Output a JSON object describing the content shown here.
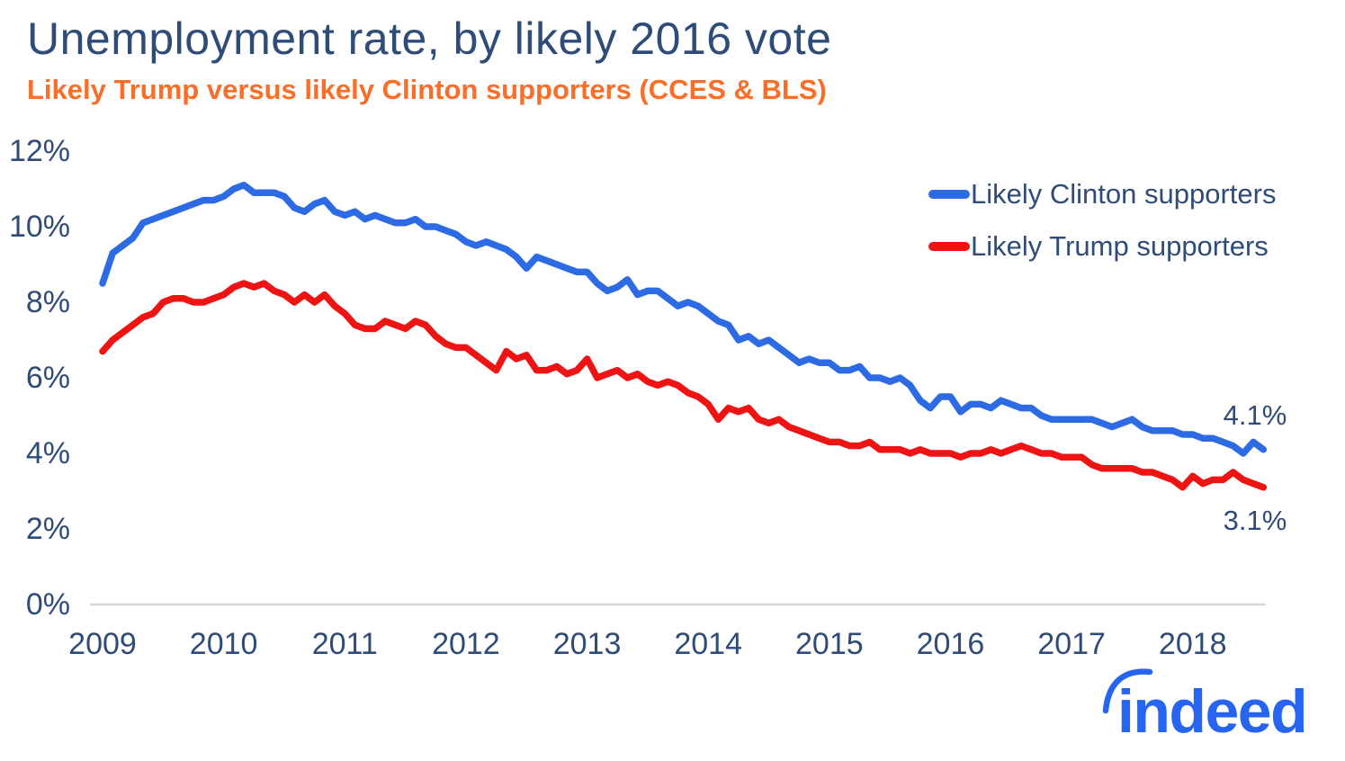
{
  "title": "Unemployment rate, by likely 2016 vote",
  "subtitle": "Likely Trump versus likely Clinton supporters (CCES & BLS)",
  "end_labels": {
    "clinton": "4.1%",
    "trump": "3.1%"
  },
  "logo_text": "indeed",
  "colors": {
    "navy_text": "#2e4c77",
    "orange_subtitle": "#f96e28",
    "clinton_blue": "#2d6be5",
    "trump_red": "#ee1414",
    "axis_gray": "#d8d8d8",
    "logo_blue": "#2664f1"
  },
  "chart_data": {
    "type": "line",
    "title": "Unemployment rate, by likely 2016 vote",
    "subtitle": "Likely Trump versus likely Clinton supporters (CCES & BLS)",
    "x_unit": "month",
    "x_start": "2009-01",
    "x_end": "2018-08",
    "x_ticks": [
      "2009",
      "2010",
      "2011",
      "2012",
      "2013",
      "2014",
      "2015",
      "2016",
      "2017",
      "2018"
    ],
    "y_ticks": [
      "0%",
      "2%",
      "4%",
      "6%",
      "8%",
      "10%",
      "12%"
    ],
    "y_tick_values": [
      0,
      2,
      4,
      6,
      8,
      10,
      12
    ],
    "ylim": [
      0,
      12
    ],
    "grid": false,
    "legend_position": "top-right",
    "series": [
      {
        "name": "Likely Clinton supporters",
        "color": "#2d6be5",
        "end_label": "4.1%",
        "values": [
          8.5,
          9.3,
          9.5,
          9.7,
          10.1,
          10.2,
          10.3,
          10.4,
          10.5,
          10.6,
          10.7,
          10.7,
          10.8,
          11.0,
          11.1,
          10.9,
          10.9,
          10.9,
          10.8,
          10.5,
          10.4,
          10.6,
          10.7,
          10.4,
          10.3,
          10.4,
          10.2,
          10.3,
          10.2,
          10.1,
          10.1,
          10.2,
          10.0,
          10.0,
          9.9,
          9.8,
          9.6,
          9.5,
          9.6,
          9.5,
          9.4,
          9.2,
          8.9,
          9.2,
          9.1,
          9.0,
          8.9,
          8.8,
          8.8,
          8.5,
          8.3,
          8.4,
          8.6,
          8.2,
          8.3,
          8.3,
          8.1,
          7.9,
          8.0,
          7.9,
          7.7,
          7.5,
          7.4,
          7.0,
          7.1,
          6.9,
          7.0,
          6.8,
          6.6,
          6.4,
          6.5,
          6.4,
          6.4,
          6.2,
          6.2,
          6.3,
          6.0,
          6.0,
          5.9,
          6.0,
          5.8,
          5.4,
          5.2,
          5.5,
          5.5,
          5.1,
          5.3,
          5.3,
          5.2,
          5.4,
          5.3,
          5.2,
          5.2,
          5.0,
          4.9,
          4.9,
          4.9,
          4.9,
          4.9,
          4.8,
          4.7,
          4.8,
          4.9,
          4.7,
          4.6,
          4.6,
          4.6,
          4.5,
          4.5,
          4.4,
          4.4,
          4.3,
          4.2,
          4.0,
          4.3,
          4.1
        ]
      },
      {
        "name": "Likely Trump supporters",
        "color": "#ee1414",
        "end_label": "3.1%",
        "values": [
          6.7,
          7.0,
          7.2,
          7.4,
          7.6,
          7.7,
          8.0,
          8.1,
          8.1,
          8.0,
          8.0,
          8.1,
          8.2,
          8.4,
          8.5,
          8.4,
          8.5,
          8.3,
          8.2,
          8.0,
          8.2,
          8.0,
          8.2,
          7.9,
          7.7,
          7.4,
          7.3,
          7.3,
          7.5,
          7.4,
          7.3,
          7.5,
          7.4,
          7.1,
          6.9,
          6.8,
          6.8,
          6.6,
          6.4,
          6.2,
          6.7,
          6.5,
          6.6,
          6.2,
          6.2,
          6.3,
          6.1,
          6.2,
          6.5,
          6.0,
          6.1,
          6.2,
          6.0,
          6.1,
          5.9,
          5.8,
          5.9,
          5.8,
          5.6,
          5.5,
          5.3,
          4.9,
          5.2,
          5.1,
          5.2,
          4.9,
          4.8,
          4.9,
          4.7,
          4.6,
          4.5,
          4.4,
          4.3,
          4.3,
          4.2,
          4.2,
          4.3,
          4.1,
          4.1,
          4.1,
          4.0,
          4.1,
          4.0,
          4.0,
          4.0,
          3.9,
          4.0,
          4.0,
          4.1,
          4.0,
          4.1,
          4.2,
          4.1,
          4.0,
          4.0,
          3.9,
          3.9,
          3.9,
          3.7,
          3.6,
          3.6,
          3.6,
          3.6,
          3.5,
          3.5,
          3.4,
          3.3,
          3.1,
          3.4,
          3.2,
          3.3,
          3.3,
          3.5,
          3.3,
          3.2,
          3.1
        ]
      }
    ]
  },
  "legend": [
    {
      "label": "Likely Clinton supporters"
    },
    {
      "label": "Likely Trump supporters"
    }
  ]
}
